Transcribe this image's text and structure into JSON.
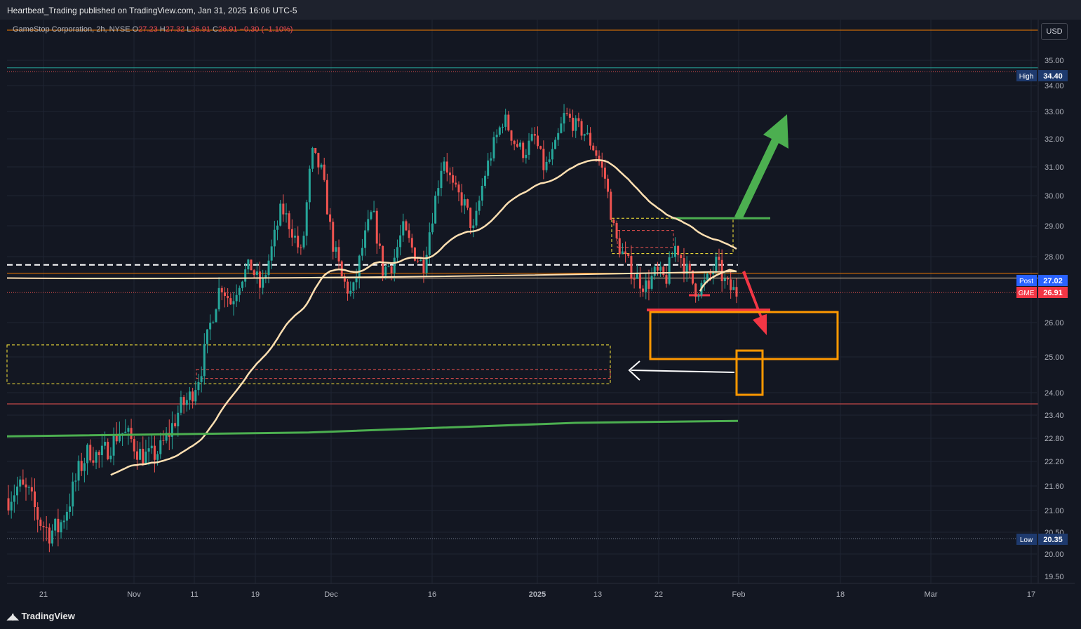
{
  "header": {
    "publisher_line": "Heartbeat_Trading published on TradingView.com, Jan 31, 2025 16:06 UTC-5"
  },
  "legend": {
    "symbol": "GameStop Corporation, 2h, NYSE",
    "o_label": "O",
    "o_value": "27.23",
    "h_label": "H",
    "h_value": "27.32",
    "l_label": "L",
    "l_value": "26.91",
    "c_label": "C",
    "c_value": "26.91",
    "change": "−0.30 (−1.10%)"
  },
  "currency": "USD",
  "footer": {
    "brand": "TradingView"
  },
  "colors": {
    "background": "#131722",
    "up_candle": "#26a69a",
    "down_candle": "#ef5350",
    "vwap_line": "#ffe0b2",
    "long_ma": "#4caf50",
    "target_box": "#ff9800",
    "arrow_up": "#4caf50",
    "arrow_down": "#f23645"
  },
  "chart_data": {
    "type": "candlestick",
    "symbol": "GME",
    "timeframe": "2h",
    "y_axis": {
      "range": [
        19.3,
        35.6
      ],
      "ticks": [
        "35.00",
        "34.00",
        "33.00",
        "32.00",
        "31.00",
        "30.00",
        "29.00",
        "28.00",
        "26.00",
        "25.00",
        "24.00",
        "23.40",
        "22.80",
        "22.20",
        "21.60",
        "21.00",
        "20.50",
        "20.00",
        "19.50"
      ]
    },
    "x_axis": {
      "ticks": [
        "21",
        "Nov",
        "11",
        "19",
        "Dec",
        "16",
        "2025",
        "13",
        "22",
        "Feb",
        "18",
        "Mar",
        "17"
      ]
    },
    "price_labels": [
      {
        "label": "High",
        "value": "34.40",
        "key": "high"
      },
      {
        "label": "Post",
        "value": "27.02",
        "key": "post"
      },
      {
        "label": "GME",
        "value": "26.91",
        "key": "last"
      },
      {
        "label": "Low",
        "value": "20.35",
        "key": "low"
      }
    ],
    "close_path": [
      21.3,
      21.6,
      21.4,
      20.8,
      20.5,
      20.6,
      21.2,
      22.0,
      22.5,
      22.3,
      22.6,
      23.0,
      22.8,
      22.4,
      22.3,
      22.5,
      23.0,
      23.6,
      23.9,
      24.6,
      26.0,
      27.2,
      26.6,
      27.4,
      27.7,
      27.0,
      28.2,
      29.6,
      28.9,
      28.0,
      31.5,
      30.8,
      28.5,
      27.3,
      26.8,
      28.3,
      29.5,
      27.6,
      27.8,
      28.9,
      28.2,
      27.7,
      29.5,
      31.4,
      30.2,
      29.8,
      28.8,
      30.6,
      31.8,
      32.8,
      31.9,
      31.5,
      32.1,
      30.9,
      31.6,
      32.9,
      32.5,
      32.2,
      31.6,
      30.6,
      28.6,
      27.9,
      27.4,
      27.1,
      27.5,
      27.3,
      28.4,
      27.6,
      27.0,
      27.2,
      27.8,
      27.1,
      26.91
    ],
    "high_marker": 34.4,
    "low_marker": 20.35,
    "horizontal_levels": [
      {
        "price": 34.7,
        "color": "#26a69a",
        "style": "solid"
      },
      {
        "price": 34.55,
        "color": "#ef5350",
        "style": "dotted"
      },
      {
        "price": 27.75,
        "color": "#ffffff",
        "style": "dashed"
      },
      {
        "price": 27.5,
        "color": "#f57c00",
        "style": "solid"
      },
      {
        "price": 27.35,
        "color": "#ffe0b2",
        "style": "solid"
      },
      {
        "price": 26.91,
        "color": "#ef5350",
        "style": "dotted"
      },
      {
        "price": 23.7,
        "color": "#ef5350",
        "style": "solid"
      },
      {
        "price": 20.35,
        "color": "#7b8296",
        "style": "dotted"
      }
    ],
    "grid": true
  }
}
